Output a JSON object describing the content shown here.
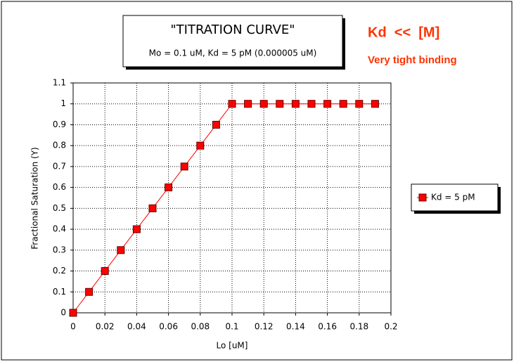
{
  "chart_data": {
    "type": "line",
    "title": "\"TITRATION CURVE\"",
    "subtitle": "Mo = 0.1 uM, Kd = 5 pM (0.000005 uM)",
    "annotations": [
      "Kd  <<  [M]",
      "Very tight binding"
    ],
    "x_label": "Lo [uM]",
    "y_label": "Fractional Saturation (Y)",
    "x": [
      0,
      0.01,
      0.02,
      0.03,
      0.04,
      0.05,
      0.06,
      0.07,
      0.08,
      0.09,
      0.1,
      0.11,
      0.12,
      0.13,
      0.14,
      0.15,
      0.16,
      0.17,
      0.18,
      0.19
    ],
    "series": [
      {
        "name": "Kd = 5 pM",
        "color": "#ff0000",
        "values": [
          0,
          0.1,
          0.2,
          0.3,
          0.4,
          0.5,
          0.6,
          0.7,
          0.8,
          0.9,
          1,
          1,
          1,
          1,
          1,
          1,
          1,
          1,
          1,
          1
        ]
      }
    ],
    "xlim": [
      0,
      0.2
    ],
    "xticks": [
      0,
      0.02,
      0.04,
      0.06,
      0.08,
      0.1,
      0.12,
      0.14,
      0.16,
      0.18,
      0.2
    ],
    "ylim": [
      0,
      1.1
    ],
    "yticks": [
      0,
      0.1,
      0.2,
      0.3,
      0.4,
      0.5,
      0.6,
      0.7,
      0.8,
      0.9,
      1,
      1.1
    ],
    "grid": true,
    "legend": "right"
  }
}
